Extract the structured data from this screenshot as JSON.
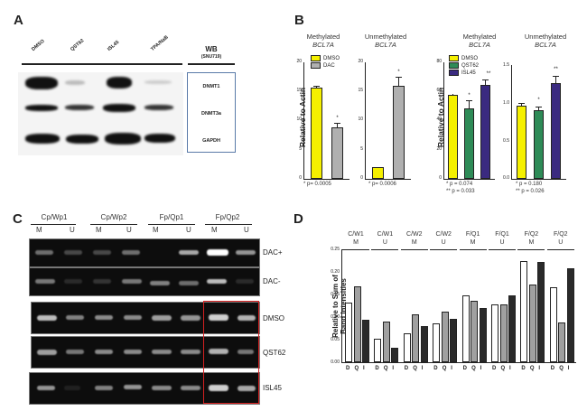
{
  "panels": {
    "A": {
      "letter": "A",
      "lanes": [
        "DMSO",
        "QST62",
        "ISL45",
        "TPA/NaB"
      ],
      "box_title": "WB",
      "box_subtitle": "(SNU719)",
      "rows": [
        "DNMT1",
        "DNMT3a",
        "GAPDH"
      ]
    },
    "B": {
      "letter": "B",
      "yaxis_label": "Relative to Actin"
    },
    "C": {
      "letter": "C",
      "primer_groups": [
        "Cp/Wp1",
        "Cp/Wp2",
        "Fp/Qp1",
        "Fp/Qp2"
      ],
      "lane_labels": [
        "M",
        "U",
        "M",
        "U",
        "M",
        "U",
        "M",
        "U"
      ],
      "rows": [
        "DAC+",
        "DAC-",
        "DMSO",
        "QST62",
        "ISL45"
      ],
      "highlight_color": "#d42020"
    },
    "D": {
      "letter": "D",
      "yaxis_label_line1": "Relative to Sum of",
      "yaxis_label_line2": "Band Intensities"
    }
  },
  "chart_data": [
    {
      "id": "B1",
      "type": "bar",
      "title": "Methylated",
      "subtitle": "BCL7A",
      "categories": [
        "DMSO",
        "DAC"
      ],
      "values": [
        15.6,
        8.8
      ],
      "errors": [
        0.3,
        0.8
      ],
      "colors": [
        "#f5f000",
        "#b0b0b0"
      ],
      "significance": [
        "",
        "*"
      ],
      "ylabel": "Relative to Actin",
      "ylim": [
        0,
        20
      ],
      "yticks": [
        "0",
        "5",
        "10",
        "15",
        "20"
      ],
      "legend": [
        "DMSO",
        "DAC"
      ],
      "pvalue_text": "* p= 0.0005"
    },
    {
      "id": "B2",
      "type": "bar",
      "title": "Unmethylated",
      "subtitle": "BCL7A",
      "categories": [
        "DMSO",
        "DAC"
      ],
      "values": [
        2.0,
        15.9
      ],
      "errors": [
        0.1,
        1.5
      ],
      "colors": [
        "#f5f000",
        "#b0b0b0"
      ],
      "significance": [
        "",
        "*"
      ],
      "ylim": [
        0,
        20
      ],
      "yticks": [
        "0",
        "5",
        "10",
        "15",
        "20"
      ],
      "pvalue_text": "* p= 0.0006"
    },
    {
      "id": "B3",
      "type": "bar",
      "title": "Methylated",
      "subtitle": "BCL7A",
      "categories": [
        "DMSO",
        "QST62",
        "ISL45"
      ],
      "values": [
        57.5,
        48.5,
        64.5
      ],
      "errors": [
        1.0,
        5.0,
        3.0
      ],
      "colors": [
        "#f5f000",
        "#2e8b57",
        "#3a2a80"
      ],
      "significance": [
        "",
        "*",
        "**"
      ],
      "ylabel": "Relative to Actin",
      "ylim": [
        0,
        80
      ],
      "yticks": [
        "0",
        "20",
        "40",
        "60",
        "80"
      ],
      "legend": [
        "DMSO",
        "QST62",
        "ISL45"
      ],
      "pvalue_text_1": "* p = 0.074",
      "pvalue_text_2": "** p = 0.033"
    },
    {
      "id": "B4",
      "type": "bar",
      "title": "Unmethylated",
      "subtitle": "BCL7A",
      "categories": [
        "DMSO",
        "QST62",
        "ISL45"
      ],
      "values": [
        0.96,
        0.91,
        1.26
      ],
      "errors": [
        0.03,
        0.03,
        0.09
      ],
      "colors": [
        "#f5f000",
        "#2e8b57",
        "#3a2a80"
      ],
      "significance": [
        "",
        "*",
        "**"
      ],
      "ylim": [
        0,
        1.5
      ],
      "yticks": [
        "0.0",
        "0.5",
        "1.0",
        "1.5"
      ],
      "pvalue_text_1": "* p = 0.180",
      "pvalue_text_2": "** p = 0.026"
    },
    {
      "id": "D",
      "type": "bar",
      "title": "",
      "ylabel": "Relative to Sum of Band Intensities",
      "ylim": [
        0,
        0.25
      ],
      "yticks": [
        "0.00",
        "0.05",
        "0.10",
        "0.15",
        "0.20",
        "0.25"
      ],
      "groups": [
        {
          "line1": "C/W1",
          "line2": "M"
        },
        {
          "line1": "C/W1",
          "line2": "U"
        },
        {
          "line1": "C/W2",
          "line2": "M"
        },
        {
          "line1": "C/W2",
          "line2": "U"
        },
        {
          "line1": "F/Q1",
          "line2": "M"
        },
        {
          "line1": "F/Q1",
          "line2": "U"
        },
        {
          "line1": "F/Q2",
          "line2": "M"
        },
        {
          "line1": "F/Q2",
          "line2": "U"
        }
      ],
      "sub_categories": [
        "D",
        "Q",
        "I"
      ],
      "series": [
        {
          "name": "D (DMSO)",
          "color": "#ffffff",
          "values": [
            0.133,
            0.053,
            0.065,
            0.086,
            0.148,
            0.128,
            0.225,
            0.167
          ]
        },
        {
          "name": "Q (QST62)",
          "color": "#a0a0a0",
          "values": [
            0.168,
            0.091,
            0.107,
            0.113,
            0.137,
            0.128,
            0.173,
            0.088
          ]
        },
        {
          "name": "I (ISL45)",
          "color": "#2a2a2a",
          "values": [
            0.095,
            0.032,
            0.081,
            0.097,
            0.12,
            0.148,
            0.222,
            0.209
          ]
        }
      ]
    }
  ]
}
